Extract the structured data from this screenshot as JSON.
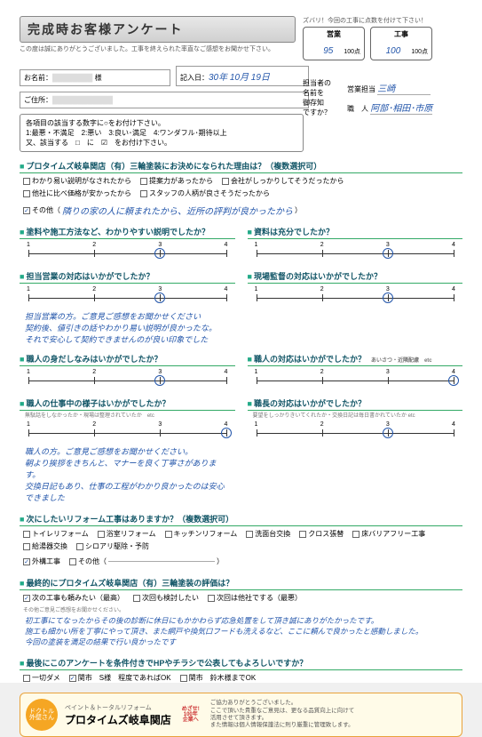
{
  "header": {
    "title": "完成時お客様アンケート",
    "subtitle": "この度は誠にありがとうございました。工事を終えられた率直なご感想をお聞かせ下さい。",
    "score_caption": "ズバリ！今回の工事に点数を付けて下さい！",
    "sales_box_label": "営業",
    "work_box_label": "工事",
    "sales_score": "95",
    "work_score": "100",
    "out_of": "100点"
  },
  "fields": {
    "name_label": "お名前：",
    "date_label": "記入日：",
    "date_value": "30年 10月 19日",
    "addr_label": "ご住所：",
    "staff_label": "担当者の\n名前を\n御存知\nですか？",
    "sales_staff_label": "営業担当",
    "sales_staff_value": "三崎",
    "worker_label": "職　人",
    "worker_value": "阿部･相田･市原"
  },
  "legend": {
    "l1": "各項目の該当する数字に○をお付け下さい。",
    "l2": "1:最悪・不満足　2:悪い　3:良い･満足　4:ワンダフル･期待以上",
    "l3": "又、該当する　□　に　☑　をお付け下さい。"
  },
  "q1": {
    "title": "プロタイムズ岐阜関店（有）三輪塗装にお決めになられた理由は？（複数選択可）",
    "opts": [
      "わかり易い説明がなされたから",
      "提案力があったから",
      "会社がしっかりしてそうだったから",
      "他社に比べ価格が安かったから",
      "スタッフの人柄が良さそうだったから"
    ],
    "other_label": "その他（",
    "other_value": "隣りの家の人に頼まれたから、近所の評判が良かったから",
    "other_close": "）",
    "other_checked": true
  },
  "pair1": {
    "left": "塗料や施工方法など、わかりやすい説明でしたか？",
    "right": "資料は充分でしたか？",
    "lval": 3,
    "rval": 3
  },
  "pair2": {
    "left": "担当営業の対応はいかがでしたか？",
    "right": "現場監督の対応はいかがでしたか？",
    "lval": 3,
    "rval": 3,
    "ltext": "担当営業の方。ご意見ご感想をお聞かせください\n契約後、値引きの話やわかり易い説明が良かったな。\nそれで安心して契約できませんのが良い印象でした"
  },
  "pair3": {
    "left": "職人の身だしなみはいかがでしたか？",
    "right": "職人の対応はいかがでしたか？",
    "rsub": "あいさつ・近隣配慮　etc",
    "lval": 3,
    "rval": 4
  },
  "pair4": {
    "left": "職人の仕事中の様子はいかがでしたか？",
    "lsub": "無駄話をしなかったか・現場は整理されていたか　etc",
    "right": "職長の対応はいかがでしたか？",
    "rsub": "要望をしっかりきいてくれたか・交換日記は毎日書かれていたか etc",
    "lval": 4,
    "rval": 3,
    "ltext": "職人の方。ご意見ご感想をお聞かせください。\n朝より挨拶をきちんと、マナーを良く丁寧さがあります。\n交換日記もあり、仕事の工程がわかり良かったのは安心できました"
  },
  "q_next": {
    "title": "次にしたいリフォーム工事はありますか？（複数選択可）",
    "opts": [
      "トイレリフォーム",
      "浴室リフォーム",
      "キッチンリフォーム",
      "洗面台交換",
      "クロス張替",
      "床バリアフリー工事",
      "給湯器交換",
      "シロアリ駆除・予防"
    ],
    "last": "外構工事",
    "last_checked": true,
    "other": "その他（"
  },
  "q_eval": {
    "title": "最終的にプロタイムズ岐阜関店（有）三輪塗装の評価は？",
    "opts": [
      "次の工事も頼みたい（最高）",
      "次回も検討したい",
      "次回は他社でする（最悪）"
    ],
    "checked": 0,
    "cap": "その他ご意見ご感想をお聞かせください。",
    "text": "初工事にてなったからその後の診断に休日にもかかわらず応急処置をして頂き誠にありがたかったです。\n施工も細かい所を丁寧にやって頂き、また網戸や換気口フードも洗えるなど、ここに頼んで良かったと感動しました。\n今回の塗装を満足の結果で行い良かったです"
  },
  "q_pub": {
    "title": "最後にこのアンケートを条件付きでHPやチラシで公表してもよろしいですか？",
    "opts": [
      "一切ダメ",
      "関市　S様　程度であればOK",
      "関市　鈴木様までOK"
    ],
    "checked": 1
  },
  "footer": {
    "logo_text": "ドクトル\n外壁さん",
    "sub": "ペイント＆トータルリフォーム",
    "name": "プロタイムズ岐阜関店",
    "badge": "めざせ!\n100年\n企業へ",
    "coop": "ご協力ありがとうございました。\nここで頂いた貴重なご意見は、更なる品質向上に向けて\n活用させて頂きます。\nまた情報は個人情報保護法に則り厳重に管理致します。"
  },
  "colors": {
    "accent": "#2a8866",
    "hand": "#2255aa"
  }
}
